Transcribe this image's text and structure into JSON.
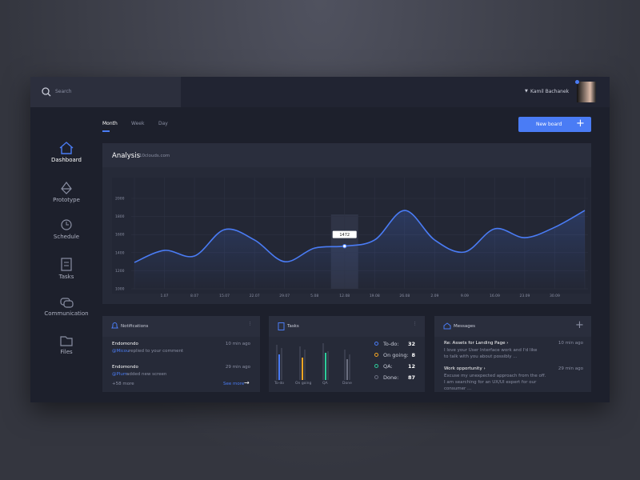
{
  "search": {
    "placeholder": "Search"
  },
  "user": {
    "name": "Kamil Bachanek"
  },
  "nav": [
    {
      "label": "Dashboard"
    },
    {
      "label": "Prototype"
    },
    {
      "label": "Schedule"
    },
    {
      "label": "Tasks"
    },
    {
      "label": "Communication"
    },
    {
      "label": "Files"
    }
  ],
  "tabs": [
    "Month",
    "Week",
    "Day"
  ],
  "new_board": "New board",
  "chart_data": {
    "type": "line",
    "title": "Analysis",
    "subtitle": "10clouds.com",
    "categories": [
      null,
      "1.07",
      "8.07",
      "15.07",
      "22.07",
      "29.07",
      "5.08",
      "12.08",
      "19.08",
      "26.08",
      "2.09",
      "9.09",
      "16.09",
      "23.09",
      "30.09",
      null
    ],
    "values": [
      1292,
      1425,
      1363,
      1655,
      1540,
      1300,
      1450,
      1472,
      1540,
      1867,
      1540,
      1407,
      1664,
      1566,
      1681,
      1867
    ],
    "value_labels": [
      null,
      null,
      null,
      null,
      null,
      null,
      null,
      "1472",
      null,
      null,
      null,
      null,
      null,
      null,
      null,
      null
    ],
    "color": "#4a7cf5",
    "ylim": [
      1000,
      2000
    ],
    "yticks": [
      1000,
      1200,
      1400,
      1600,
      1800,
      2000
    ],
    "grid": true
  },
  "notifications": {
    "title": "Notifications",
    "items": [
      {
        "from": "Endomondo",
        "time": "10 min ago",
        "user": "@Micou",
        "text": "replied to your comment"
      },
      {
        "from": "Endomondo",
        "time": "29 min ago",
        "user": "@Plum",
        "text": "added new screen"
      }
    ],
    "more": "+58 more",
    "see_more": "See more"
  },
  "tasks": {
    "title": "Tasks",
    "groups": [
      "To-do",
      "On going",
      "QA",
      "Done"
    ],
    "legend": [
      {
        "label": "To-do:",
        "count": 32
      },
      {
        "label": "On going:",
        "count": 8
      },
      {
        "label": "QA:",
        "count": 12
      },
      {
        "label": "Done:",
        "count": 87
      }
    ]
  },
  "messages": {
    "title": "Messages",
    "items": [
      {
        "subject": "Re: Assets for Landing Page ›",
        "time": "10 min ago",
        "text": "I love your User Interface work and I'd like to talk with you about possibly ..."
      },
      {
        "subject": "Work opportunity ›",
        "time": "29 min ago",
        "text": "Excuse my unexpected approach from the off. I am searching for an UX/UI expert for our consumer ..."
      }
    ]
  }
}
